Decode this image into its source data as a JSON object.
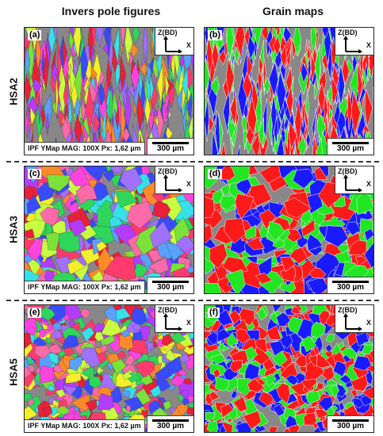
{
  "columns": {
    "left": "Invers pole figures",
    "right": "Grain maps"
  },
  "rows": [
    {
      "label": "HSA2"
    },
    {
      "label": "HSA3"
    },
    {
      "label": "HSA5"
    }
  ],
  "panels": {
    "a": "(a)",
    "b": "(b)",
    "c": "(c)",
    "d": "(d)",
    "e": "(e)",
    "f": "(f)"
  },
  "axes": {
    "z": "Z(BD)",
    "x": "X"
  },
  "info": "IPF YMap  MAG: 100X  Px: 1,62 µm",
  "scale": "300 µm",
  "colors": {
    "ipf": [
      "#e8203a",
      "#ff3b6e",
      "#2fd65a",
      "#36e0e8",
      "#3a4bff",
      "#b43cff",
      "#ff44dd",
      "#f4ef2c",
      "#ff8a2a",
      "#7be23a",
      "#ff6aa8",
      "#5aa0ff",
      "#c8ff40",
      "#a070ff"
    ],
    "grain": [
      "#ff1a1a",
      "#1a1aff",
      "#22e622"
    ]
  }
}
